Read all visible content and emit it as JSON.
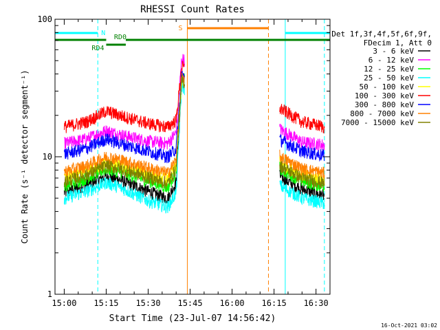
{
  "chart_data": {
    "type": "line",
    "title": "RHESSI Count Rates",
    "xlabel": "Start Time (23-Jul-07 14:56:42)",
    "ylabel": "Count Rate (s⁻¹ detector segment⁻¹)",
    "y_scale": "log",
    "ylim": [
      1,
      100
    ],
    "xlim": [
      "14:56:42",
      "16:35:00"
    ],
    "x_ticks": [
      "15:00",
      "15:15",
      "15:30",
      "15:45",
      "16:00",
      "16:15",
      "16:30"
    ],
    "y_ticks": [
      "1",
      "10",
      "100"
    ],
    "legend_header": [
      "Det 1f,3f,4f,5f,6f,9f,",
      "FDecim 1, Att 0"
    ],
    "legend_position": "right",
    "timestamp": "16-Oct-2021 03:02",
    "series": [
      {
        "name": "3 - 6 keV",
        "color": "#000000",
        "x": [
          "15:00",
          "15:08",
          "15:15",
          "15:20",
          "15:30",
          "15:37",
          "15:40",
          "15:42",
          "16:18",
          "16:25",
          "16:33"
        ],
        "values": [
          5.5,
          6.3,
          7.2,
          6.8,
          5.6,
          5.0,
          6.5,
          35,
          7.0,
          5.8,
          5.2
        ]
      },
      {
        "name": "6 - 12 keV",
        "color": "#ff00ff",
        "x": [
          "15:00",
          "15:08",
          "15:15",
          "15:20",
          "15:30",
          "15:37",
          "15:40",
          "15:42",
          "16:18",
          "16:25",
          "16:33"
        ],
        "values": [
          12.5,
          13.5,
          15.5,
          14.5,
          13.0,
          12.5,
          15.0,
          52,
          15.5,
          12.8,
          12.2
        ]
      },
      {
        "name": "12 - 25 keV",
        "color": "#00ff00",
        "x": [
          "15:00",
          "15:08",
          "15:15",
          "15:20",
          "15:30",
          "15:37",
          "15:40",
          "15:42",
          "16:18",
          "16:25",
          "16:33"
        ],
        "values": [
          6.2,
          7.0,
          8.2,
          7.8,
          6.7,
          6.0,
          7.8,
          38,
          8.0,
          6.7,
          6.1
        ]
      },
      {
        "name": "25 - 50 keV",
        "color": "#00ffff",
        "x": [
          "15:00",
          "15:08",
          "15:15",
          "15:20",
          "15:30",
          "15:37",
          "15:40",
          "15:42",
          "16:18",
          "16:25",
          "16:33"
        ],
        "values": [
          5.0,
          5.6,
          6.5,
          6.0,
          4.8,
          4.3,
          5.5,
          33,
          6.0,
          5.0,
          4.6
        ]
      },
      {
        "name": "50 - 100 keV",
        "color": "#ffff00",
        "x": [
          "15:00",
          "15:08",
          "15:15",
          "15:20",
          "15:30",
          "15:37",
          "15:40",
          "15:42",
          "16:18",
          "16:25",
          "16:33"
        ],
        "values": [
          7.0,
          7.8,
          9.0,
          8.6,
          7.5,
          6.8,
          8.6,
          36,
          8.8,
          7.4,
          6.8
        ]
      },
      {
        "name": "100 - 300 keV",
        "color": "#ff0000",
        "x": [
          "15:00",
          "15:08",
          "15:15",
          "15:20",
          "15:30",
          "15:37",
          "15:40",
          "15:42",
          "16:18",
          "16:25",
          "16:33"
        ],
        "values": [
          16.5,
          18.0,
          21.5,
          20.0,
          17.5,
          16.5,
          18.5,
          45,
          22.0,
          18.0,
          16.5
        ]
      },
      {
        "name": "300 - 800 keV",
        "color": "#0000ff",
        "x": [
          "15:00",
          "15:08",
          "15:15",
          "15:20",
          "15:30",
          "15:37",
          "15:40",
          "15:42",
          "16:18",
          "16:25",
          "16:33"
        ],
        "values": [
          10.5,
          11.5,
          13.5,
          12.5,
          11.0,
          10.0,
          11.5,
          40,
          13.0,
          11.0,
          10.2
        ]
      },
      {
        "name": "800 - 7000 keV",
        "color": "#ff8000",
        "x": [
          "15:00",
          "15:08",
          "15:15",
          "15:20",
          "15:30",
          "15:37",
          "15:40",
          "15:42",
          "16:18",
          "16:25",
          "16:33"
        ],
        "values": [
          7.8,
          8.6,
          10.0,
          9.5,
          8.3,
          7.6,
          9.5,
          37,
          9.8,
          8.2,
          7.6
        ]
      },
      {
        "name": "7000 - 15000 keV",
        "color": "#808000",
        "x": [
          "15:00",
          "15:08",
          "15:15",
          "15:20",
          "15:30",
          "15:37",
          "15:40",
          "15:42",
          "16:18",
          "16:25",
          "16:33"
        ],
        "values": [
          6.6,
          7.4,
          8.6,
          8.2,
          7.1,
          6.4,
          8.2,
          36,
          8.4,
          7.0,
          6.4
        ]
      }
    ],
    "state_bars": [
      {
        "label": "N",
        "color": "#00ffff",
        "segments": [
          [
            "14:56:42",
            "15:12"
          ],
          [
            "16:19",
            "16:35"
          ]
        ]
      },
      {
        "label": "S",
        "color": "#ff8000",
        "segments": [
          [
            "15:44",
            "16:13"
          ]
        ]
      },
      {
        "label": "RD0",
        "color": "#008000",
        "segments": [
          [
            "15:22",
            "16:35"
          ]
        ]
      },
      {
        "label": "RD4",
        "color": "#008000",
        "segments": [
          [
            "15:15",
            "15:22"
          ]
        ]
      },
      {
        "label": "",
        "color": "#008000",
        "segments": [
          [
            "14:56:42",
            "15:15"
          ]
        ]
      }
    ],
    "vertical_markers": [
      {
        "time": "14:56:42",
        "color": "#00ffff",
        "style": "solid"
      },
      {
        "time": "15:12",
        "color": "#00ffff",
        "style": "dashed"
      },
      {
        "time": "15:44",
        "color": "#ff8000",
        "style": "solid"
      },
      {
        "time": "16:13",
        "color": "#ff8000",
        "style": "dashed"
      },
      {
        "time": "16:19",
        "color": "#00ffff",
        "style": "solid"
      },
      {
        "time": "16:33",
        "color": "#00ffff",
        "style": "dashed"
      }
    ],
    "data_gap": [
      "15:43",
      "16:17"
    ]
  }
}
